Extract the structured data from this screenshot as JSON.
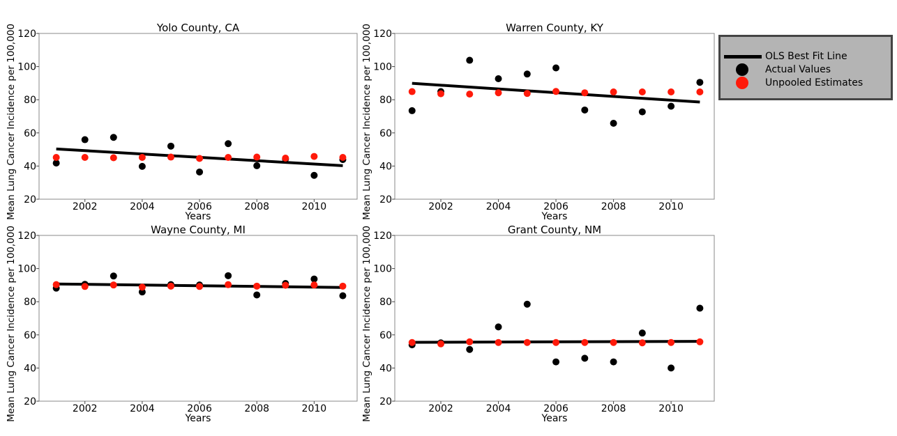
{
  "chart_data": [
    {
      "type": "scatter",
      "title": "Yolo County, CA",
      "xlabel": "Years",
      "ylabel": "Mean Lung Cancer Incidence per 100,000",
      "xticks": [
        2002,
        2004,
        2006,
        2008,
        2010
      ],
      "yticks": [
        20,
        40,
        60,
        80,
        100,
        120
      ],
      "xlim": [
        2000.4,
        2011.5
      ],
      "ylim": [
        20,
        120
      ],
      "x": [
        2001,
        2002,
        2003,
        2004,
        2005,
        2006,
        2007,
        2008,
        2009,
        2010,
        2011
      ],
      "series": [
        {
          "name": "OLS Best Fit Line",
          "kind": "line",
          "color": "#000000",
          "x": [
            2001,
            2011
          ],
          "values": [
            50.3,
            40.2
          ]
        },
        {
          "name": "Actual Values",
          "kind": "points",
          "color": "#000000",
          "values": [
            41.8,
            55.9,
            57.3,
            39.8,
            52.0,
            36.4,
            53.5,
            40.2,
            44.3,
            34.4,
            43.9
          ]
        },
        {
          "name": "Unpooled Estimates",
          "kind": "points",
          "color": "#ff1a0a",
          "values": [
            45.2,
            45.2,
            45.0,
            45.2,
            45.4,
            44.6,
            45.2,
            45.4,
            44.8,
            45.8,
            45.2
          ]
        }
      ]
    },
    {
      "type": "scatter",
      "title": "Warren County, KY",
      "xlabel": "Years",
      "ylabel": "Mean Lung Cancer Incidence per 100,000",
      "xticks": [
        2002,
        2004,
        2006,
        2008,
        2010
      ],
      "yticks": [
        20,
        40,
        60,
        80,
        100,
        120
      ],
      "xlim": [
        2000.4,
        2011.5
      ],
      "ylim": [
        20,
        120
      ],
      "x": [
        2001,
        2002,
        2003,
        2004,
        2005,
        2006,
        2007,
        2008,
        2009,
        2010,
        2011
      ],
      "series": [
        {
          "name": "OLS Best Fit Line",
          "kind": "line",
          "color": "#000000",
          "x": [
            2001,
            2011
          ],
          "values": [
            89.9,
            78.6
          ]
        },
        {
          "name": "Actual Values",
          "kind": "points",
          "color": "#000000",
          "values": [
            73.4,
            84.9,
            103.8,
            92.7,
            95.5,
            99.2,
            73.8,
            65.8,
            72.7,
            76.1,
            90.5
          ]
        },
        {
          "name": "Unpooled Estimates",
          "kind": "points",
          "color": "#ff1a0a",
          "values": [
            84.9,
            83.6,
            83.4,
            84.2,
            83.8,
            85.0,
            84.2,
            84.7,
            84.7,
            84.7,
            84.7
          ]
        }
      ]
    },
    {
      "type": "scatter",
      "title": "Wayne County, MI",
      "xlabel": "Years",
      "ylabel": "Mean Lung Cancer Incidence per 100,000",
      "xticks": [
        2002,
        2004,
        2006,
        2008,
        2010
      ],
      "yticks": [
        20,
        40,
        60,
        80,
        100,
        120
      ],
      "xlim": [
        2000.4,
        2011.5
      ],
      "ylim": [
        20,
        120
      ],
      "x": [
        2001,
        2002,
        2003,
        2004,
        2005,
        2006,
        2007,
        2008,
        2009,
        2010,
        2011
      ],
      "series": [
        {
          "name": "OLS Best Fit Line",
          "kind": "line",
          "color": "#000000",
          "x": [
            2001,
            2011
          ],
          "values": [
            90.7,
            88.6
          ]
        },
        {
          "name": "Actual Values",
          "kind": "points",
          "color": "#000000",
          "values": [
            88.2,
            90.5,
            95.5,
            85.9,
            90.3,
            90.1,
            95.7,
            84.1,
            91.0,
            93.7,
            83.6
          ]
        },
        {
          "name": "Unpooled Estimates",
          "kind": "points",
          "color": "#ff1a0a",
          "values": [
            90.3,
            89.2,
            90.1,
            88.8,
            89.4,
            89.2,
            90.3,
            89.4,
            89.9,
            90.1,
            89.4
          ]
        }
      ]
    },
    {
      "type": "scatter",
      "title": "Grant County, NM",
      "xlabel": "Years",
      "ylabel": "Mean Lung Cancer Incidence per 100,000",
      "xticks": [
        2002,
        2004,
        2006,
        2008,
        2010
      ],
      "yticks": [
        20,
        40,
        60,
        80,
        100,
        120
      ],
      "xlim": [
        2000.4,
        2011.5
      ],
      "ylim": [
        20,
        120
      ],
      "x": [
        2001,
        2002,
        2003,
        2004,
        2005,
        2006,
        2007,
        2008,
        2009,
        2010,
        2011
      ],
      "series": [
        {
          "name": "OLS Best Fit Line",
          "kind": "line",
          "color": "#000000",
          "x": [
            2001,
            2011
          ],
          "values": [
            55.5,
            56.1
          ]
        },
        {
          "name": "Actual Values",
          "kind": "points",
          "color": "#000000",
          "values": [
            54.0,
            55.2,
            51.2,
            64.8,
            78.5,
            43.7,
            45.9,
            43.7,
            61.1,
            40.0,
            76.1
          ]
        },
        {
          "name": "Unpooled Estimates",
          "kind": "points",
          "color": "#ff1a0a",
          "values": [
            55.4,
            54.6,
            55.8,
            55.4,
            55.4,
            55.4,
            55.4,
            55.4,
            55.2,
            55.4,
            55.8
          ]
        }
      ]
    }
  ],
  "legend": {
    "items": [
      {
        "label": "OLS Best Fit Line",
        "marker": "line",
        "color": "#000000"
      },
      {
        "label": "Actual Values",
        "marker": "dot",
        "color": "#000000"
      },
      {
        "label": "Unpooled Estimates",
        "marker": "dot",
        "color": "#ff1a0a"
      }
    ]
  }
}
